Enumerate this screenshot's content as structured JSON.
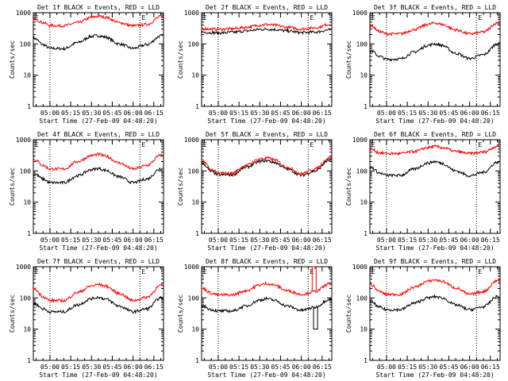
{
  "figure": {
    "xlabel": "Start Time (27-Feb-09 04:48:20)",
    "ylabel": "Counts/sec",
    "colors": {
      "events": "#000000",
      "lld": "#ff0000",
      "axes": "#000000"
    }
  },
  "chart_data": [
    {
      "type": "line",
      "title": "Det 1f BLACK = Events, RED = LLD",
      "xlabel": "Start Time (27-Feb-09 04:48:20)",
      "ylabel": "Counts/sec",
      "xlim": [
        "04:48",
        "06:22"
      ],
      "ylim": [
        1,
        1000
      ],
      "yscale": "log",
      "x_ticks": [
        "05:00",
        "05:15",
        "05:30",
        "05:45",
        "06:00",
        "06:15"
      ],
      "y_ticks": [
        "1",
        "10",
        "100",
        "1000"
      ],
      "vlines": [
        "05:00",
        "06:05"
      ],
      "markers": [
        "E",
        "E"
      ],
      "x": [
        "04:49",
        "04:55",
        "05:00",
        "05:10",
        "05:20",
        "05:30",
        "05:35",
        "05:40",
        "05:50",
        "06:00",
        "06:10",
        "06:20"
      ],
      "series": [
        {
          "name": "Events",
          "color": "#000000",
          "values": [
            150,
            95,
            72,
            70,
            110,
            175,
            185,
            165,
            100,
            72,
            95,
            180
          ]
        },
        {
          "name": "LLD",
          "color": "#ff0000",
          "values": [
            620,
            480,
            390,
            380,
            480,
            700,
            780,
            720,
            480,
            380,
            420,
            750
          ]
        }
      ]
    },
    {
      "type": "line",
      "title": "Det 2f BLACK = Events, RED = LLD",
      "xlabel": "Start Time (27-Feb-09 04:48:20)",
      "ylabel": "Counts/sec",
      "xlim": [
        "04:48",
        "06:22"
      ],
      "ylim": [
        1,
        1000
      ],
      "yscale": "log",
      "x_ticks": [
        "05:00",
        "05:15",
        "05:30",
        "05:45",
        "06:00",
        "06:15"
      ],
      "y_ticks": [
        "1",
        "10",
        "100",
        "1000"
      ],
      "vlines": [
        "05:00",
        "06:05"
      ],
      "markers": [
        "E",
        "E"
      ],
      "x": [
        "04:49",
        "04:55",
        "05:00",
        "05:10",
        "05:20",
        "05:30",
        "05:35",
        "05:40",
        "05:50",
        "06:00",
        "06:10",
        "06:20"
      ],
      "series": [
        {
          "name": "Events",
          "color": "#000000",
          "values": [
            240,
            230,
            225,
            235,
            260,
            290,
            300,
            290,
            260,
            230,
            240,
            280
          ]
        },
        {
          "name": "LLD",
          "color": "#ff0000",
          "values": [
            310,
            300,
            295,
            305,
            340,
            400,
            420,
            400,
            340,
            300,
            330,
            420
          ]
        }
      ]
    },
    {
      "type": "line",
      "title": "Det 3f BLACK = Events, RED = LLD",
      "xlabel": "Start Time (27-Feb-09 04:48:20)",
      "ylabel": "Counts/sec",
      "xlim": [
        "04:48",
        "06:22"
      ],
      "ylim": [
        1,
        1000
      ],
      "yscale": "log",
      "x_ticks": [
        "05:00",
        "05:15",
        "05:30",
        "05:45",
        "06:00",
        "06:15"
      ],
      "y_ticks": [
        "1",
        "10",
        "100",
        "1000"
      ],
      "vlines": [
        "05:00",
        "06:05"
      ],
      "markers": [
        "E",
        "E"
      ],
      "x": [
        "04:49",
        "04:55",
        "05:00",
        "05:10",
        "05:20",
        "05:30",
        "05:35",
        "05:40",
        "05:50",
        "06:00",
        "06:10",
        "06:20"
      ],
      "series": [
        {
          "name": "Events",
          "color": "#000000",
          "values": [
            60,
            40,
            32,
            33,
            55,
            90,
            100,
            90,
            50,
            34,
            45,
            100
          ]
        },
        {
          "name": "LLD",
          "color": "#ff0000",
          "values": [
            380,
            250,
            210,
            210,
            290,
            420,
            470,
            420,
            280,
            210,
            240,
            470
          ]
        }
      ]
    },
    {
      "type": "line",
      "title": "Det 4f BLACK = Events, RED = LLD",
      "xlabel": "Start Time (27-Feb-09 04:48:20)",
      "ylabel": "Counts/sec",
      "xlim": [
        "04:48",
        "06:22"
      ],
      "ylim": [
        1,
        1000
      ],
      "yscale": "log",
      "x_ticks": [
        "05:00",
        "05:15",
        "05:30",
        "05:45",
        "06:00",
        "06:15"
      ],
      "y_ticks": [
        "1",
        "10",
        "100",
        "1000"
      ],
      "vlines": [
        "05:00",
        "06:05"
      ],
      "markers": [
        "E",
        "E"
      ],
      "x": [
        "04:49",
        "04:55",
        "05:00",
        "05:10",
        "05:20",
        "05:30",
        "05:35",
        "05:40",
        "05:50",
        "06:00",
        "06:10",
        "06:20"
      ],
      "series": [
        {
          "name": "Events",
          "color": "#000000",
          "values": [
            80,
            55,
            42,
            42,
            70,
            110,
            120,
            105,
            65,
            42,
            55,
            120
          ]
        },
        {
          "name": "LLD",
          "color": "#ff0000",
          "values": [
            230,
            150,
            115,
            115,
            200,
            310,
            340,
            300,
            180,
            115,
            150,
            320
          ]
        }
      ]
    },
    {
      "type": "line",
      "title": "Det 5f BLACK = Events, RED = LLD",
      "xlabel": "Start Time (27-Feb-09 04:48:20)",
      "ylabel": "Counts/sec",
      "xlim": [
        "04:48",
        "06:22"
      ],
      "ylim": [
        1,
        1000
      ],
      "yscale": "log",
      "x_ticks": [
        "05:00",
        "05:15",
        "05:30",
        "05:45",
        "06:00",
        "06:15"
      ],
      "y_ticks": [
        "1",
        "10",
        "100",
        "1000"
      ],
      "vlines": [
        "05:00",
        "06:05"
      ],
      "markers": [
        "E",
        "E"
      ],
      "x": [
        "04:49",
        "04:55",
        "05:00",
        "05:10",
        "05:20",
        "05:30",
        "05:35",
        "05:40",
        "05:50",
        "06:00",
        "06:10",
        "06:20"
      ],
      "series": [
        {
          "name": "Events",
          "color": "#000000",
          "values": [
            170,
            95,
            75,
            75,
            130,
            200,
            215,
            190,
            115,
            72,
            100,
            220
          ]
        },
        {
          "name": "LLD",
          "color": "#ff0000",
          "values": [
            210,
            110,
            85,
            85,
            150,
            240,
            260,
            230,
            130,
            82,
            115,
            260
          ]
        }
      ]
    },
    {
      "type": "line",
      "title": "Det 6f BLACK = Events, RED = LLD",
      "xlabel": "Start Time (27-Feb-09 04:48:20)",
      "ylabel": "Counts/sec",
      "xlim": [
        "04:48",
        "06:22"
      ],
      "ylim": [
        1,
        1000
      ],
      "yscale": "log",
      "x_ticks": [
        "05:00",
        "05:15",
        "05:30",
        "05:45",
        "06:00",
        "06:15"
      ],
      "y_ticks": [
        "1",
        "10",
        "100",
        "1000"
      ],
      "vlines": [
        "05:00",
        "06:05"
      ],
      "markers": [
        "E",
        "E"
      ],
      "x": [
        "04:49",
        "04:55",
        "05:00",
        "05:10",
        "05:20",
        "05:30",
        "05:35",
        "05:40",
        "05:50",
        "06:00",
        "06:10",
        "06:20"
      ],
      "series": [
        {
          "name": "Events",
          "color": "#000000",
          "values": [
            130,
            85,
            72,
            72,
            115,
            180,
            200,
            175,
            100,
            70,
            90,
            190
          ]
        },
        {
          "name": "LLD",
          "color": "#ff0000",
          "values": [
            500,
            380,
            360,
            360,
            420,
            560,
            610,
            560,
            420,
            360,
            400,
            620
          ]
        }
      ]
    },
    {
      "type": "line",
      "title": "Det 7f BLACK = Events, RED = LLD",
      "xlabel": "Start Time (27-Feb-09 04:48:20)",
      "ylabel": "Counts/sec",
      "xlim": [
        "04:48",
        "06:22"
      ],
      "ylim": [
        1,
        1000
      ],
      "yscale": "log",
      "x_ticks": [
        "05:00",
        "05:15",
        "05:30",
        "05:45",
        "06:00",
        "06:15"
      ],
      "y_ticks": [
        "1",
        "10",
        "100",
        "1000"
      ],
      "vlines": [
        "05:00",
        "06:05"
      ],
      "markers": [
        "E",
        "E"
      ],
      "x": [
        "04:49",
        "04:55",
        "05:00",
        "05:10",
        "05:20",
        "05:30",
        "05:35",
        "05:40",
        "05:50",
        "06:00",
        "06:10",
        "06:20"
      ],
      "series": [
        {
          "name": "Events",
          "color": "#000000",
          "values": [
            65,
            45,
            36,
            36,
            60,
            95,
            105,
            92,
            55,
            36,
            45,
            100
          ]
        },
        {
          "name": "LLD",
          "color": "#ff0000",
          "values": [
            190,
            110,
            82,
            82,
            150,
            240,
            270,
            240,
            140,
            82,
            105,
            250
          ]
        }
      ]
    },
    {
      "type": "line",
      "title": "Det 8f BLACK = Events, RED = LLD",
      "xlabel": "Start Time (27-Feb-09 04:48:20)",
      "ylabel": "Counts/sec",
      "xlim": [
        "04:48",
        "06:22"
      ],
      "ylim": [
        1,
        1000
      ],
      "yscale": "log",
      "x_ticks": [
        "05:00",
        "05:15",
        "05:30",
        "05:45",
        "06:00",
        "06:15"
      ],
      "y_ticks": [
        "1",
        "10",
        "100",
        "1000"
      ],
      "vlines": [
        "05:00",
        "06:05"
      ],
      "markers": [
        "E",
        "E"
      ],
      "x": [
        "04:49",
        "04:55",
        "05:00",
        "05:10",
        "05:20",
        "05:30",
        "05:35",
        "05:40",
        "05:50",
        "06:00",
        "06:10",
        "06:20"
      ],
      "series": [
        {
          "name": "Events",
          "color": "#000000",
          "values": [
            55,
            42,
            38,
            38,
            55,
            85,
            95,
            85,
            55,
            40,
            50,
            90
          ]
        },
        {
          "name": "LLD",
          "color": "#ff0000",
          "values": [
            200,
            140,
            125,
            125,
            170,
            260,
            290,
            260,
            170,
            130,
            160,
            280
          ]
        }
      ],
      "spikes": [
        {
          "series": "LLD",
          "x": "06:09",
          "value": 1000
        },
        {
          "series": "Events",
          "x": "06:10",
          "value": 10
        }
      ]
    },
    {
      "type": "line",
      "title": "Det 9f BLACK = Events, RED = LLD",
      "xlabel": "Start Time (27-Feb-09 04:48:20)",
      "ylabel": "Counts/sec",
      "xlim": [
        "04:48",
        "06:22"
      ],
      "ylim": [
        1,
        1000
      ],
      "yscale": "log",
      "x_ticks": [
        "05:00",
        "05:15",
        "05:30",
        "05:45",
        "06:00",
        "06:15"
      ],
      "y_ticks": [
        "1",
        "10",
        "100",
        "1000"
      ],
      "vlines": [
        "05:00",
        "06:05"
      ],
      "markers": [
        "E",
        "E"
      ],
      "x": [
        "04:49",
        "04:55",
        "05:00",
        "05:10",
        "05:20",
        "05:30",
        "05:35",
        "05:40",
        "05:50",
        "06:00",
        "06:10",
        "06:20"
      ],
      "series": [
        {
          "name": "Events",
          "color": "#000000",
          "values": [
            75,
            50,
            42,
            42,
            68,
            100,
            110,
            100,
            60,
            42,
            52,
            110
          ]
        },
        {
          "name": "LLD",
          "color": "#ff0000",
          "values": [
            260,
            160,
            130,
            130,
            220,
            340,
            380,
            340,
            210,
            130,
            160,
            360
          ]
        }
      ]
    }
  ]
}
